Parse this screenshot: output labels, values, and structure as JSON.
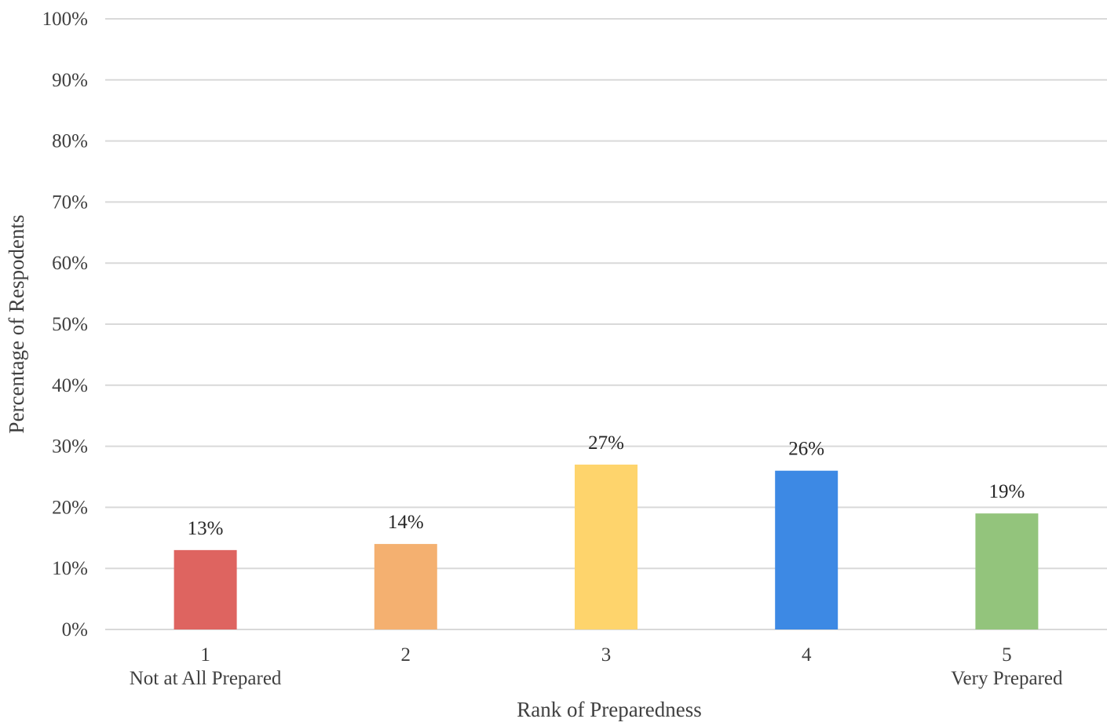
{
  "chart_data": {
    "type": "bar",
    "categories": [
      "1",
      "2",
      "3",
      "4",
      "5"
    ],
    "category_sublabels": [
      "Not at All Prepared",
      "",
      "",
      "",
      "Very Prepared"
    ],
    "values": [
      13,
      14,
      27,
      26,
      19
    ],
    "data_labels": [
      "13%",
      "14%",
      "27%",
      "26%",
      "19%"
    ],
    "bar_colors": [
      "#de6460",
      "#f4b070",
      "#fed46c",
      "#3d89e4",
      "#93c47c"
    ],
    "title": "",
    "xlabel": "Rank of Preparedness",
    "ylabel": "Percentage of Respodents",
    "ylim": [
      0,
      100
    ],
    "y_ticks": [
      0,
      10,
      20,
      30,
      40,
      50,
      60,
      70,
      80,
      90,
      100
    ],
    "y_tick_labels": [
      "0%",
      "10%",
      "20%",
      "30%",
      "40%",
      "50%",
      "60%",
      "70%",
      "80%",
      "90%",
      "100%"
    ],
    "grid": true,
    "legend": "none"
  },
  "colors": {
    "gridline": "#d9d9d9",
    "text": "#404040"
  }
}
